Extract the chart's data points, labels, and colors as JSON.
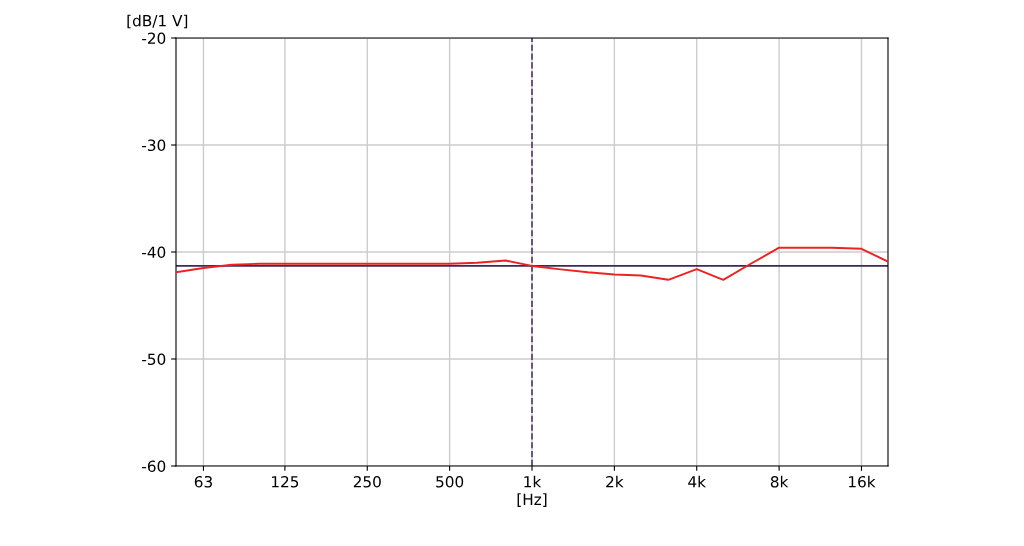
{
  "chart_data": {
    "type": "line",
    "xlabel": "[Hz]",
    "ylabel": "[dB/1 V]",
    "x": [
      50,
      63,
      80,
      100,
      125,
      160,
      200,
      250,
      315,
      400,
      500,
      630,
      800,
      1000,
      1250,
      1600,
      2000,
      2500,
      3150,
      4000,
      5000,
      6300,
      8000,
      10000,
      12500,
      16000,
      20000
    ],
    "series": [
      {
        "color": "#ee2222",
        "values": [
          -41.9,
          -41.5,
          -41.2,
          -41.1,
          -41.1,
          -41.1,
          -41.1,
          -41.1,
          -41.1,
          -41.1,
          -41.1,
          -41.0,
          -40.8,
          -41.3,
          -41.6,
          -41.9,
          -42.1,
          -42.2,
          -42.6,
          -41.6,
          -42.6,
          -41.1,
          -39.6,
          -39.6,
          -39.6,
          -39.7,
          -40.9
        ]
      }
    ],
    "log": "x",
    "xlim": [
      50,
      20000
    ],
    "xticks": [
      63,
      125,
      250,
      500,
      {
        "value": 1000,
        "label": "1k"
      },
      {
        "value": 2000,
        "label": "2k"
      },
      {
        "value": 4000,
        "label": "4k"
      },
      {
        "value": 8000,
        "label": "8k"
      },
      {
        "value": 16000,
        "label": "16k"
      }
    ],
    "ylim": [
      -60,
      -20
    ],
    "yticks": [
      -60,
      -50,
      -40,
      -30,
      -20
    ],
    "grid": true,
    "line_style": "solid",
    "marker": "none",
    "ref_lines": [
      {
        "axis": "y",
        "value": -41.3,
        "color": "#3a2a5a",
        "line_style": "solid"
      },
      {
        "axis": "x",
        "value": 1000,
        "color": "#5a3a6a",
        "line_style": "dashed"
      }
    ]
  }
}
